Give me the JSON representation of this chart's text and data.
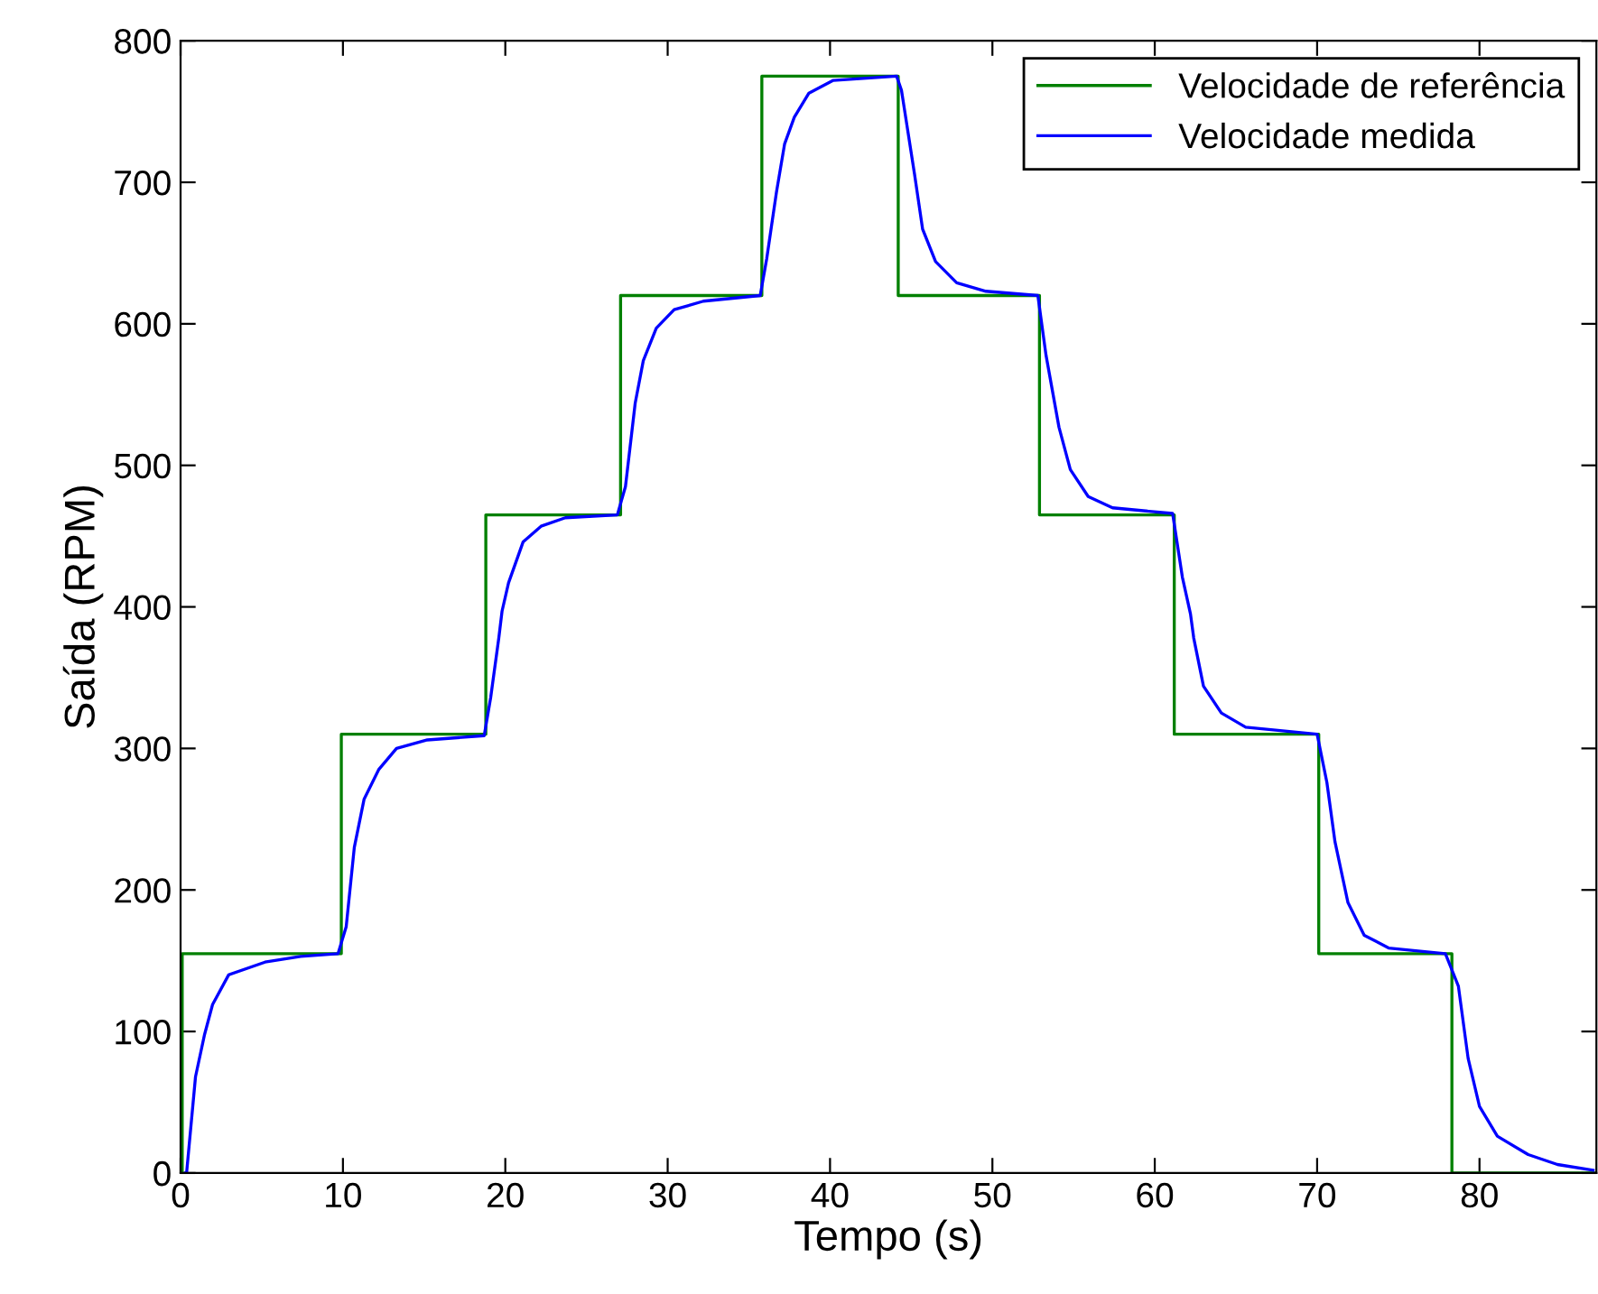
{
  "chart_data": {
    "type": "line",
    "xlabel": "Tempo (s)",
    "ylabel": "Saída (RPM)",
    "xlim": [
      0,
      87.2
    ],
    "ylim": [
      0,
      800
    ],
    "xticks": [
      0,
      10,
      20,
      30,
      40,
      50,
      60,
      70,
      80
    ],
    "yticks": [
      0,
      100,
      200,
      300,
      400,
      500,
      600,
      700,
      800
    ],
    "grid": false,
    "legend": "top right",
    "series": [
      {
        "name": "Velocidade de referência",
        "color": "#008000",
        "type": "step",
        "x": [
          0,
          0.1,
          9.9,
          18.8,
          27.1,
          35.8,
          44.2,
          52.9,
          61.2,
          70.1,
          78.3,
          87.2
        ],
        "values": [
          0,
          155,
          310,
          465,
          620,
          775,
          620,
          465,
          310,
          155,
          0,
          0
        ]
      },
      {
        "name": "Velocidade medida",
        "color": "#0000ff",
        "x": [
          0.3,
          0.37,
          0.92,
          1.48,
          1.97,
          2.96,
          5.2,
          7.4,
          9.7,
          10.2,
          10.7,
          11.3,
          12.2,
          13.3,
          15.2,
          18.7,
          19.1,
          19.6,
          19.8,
          20.2,
          21.1,
          22.2,
          23.7,
          26.9,
          27.4,
          28.0,
          28.5,
          29.3,
          30.4,
          32.2,
          35.7,
          36.1,
          36.7,
          37.2,
          37.8,
          38.7,
          40.2,
          44.1,
          44.4,
          45.2,
          45.7,
          46.5,
          47.8,
          49.6,
          52.8,
          53.3,
          54.1,
          54.8,
          55.9,
          57.4,
          61.1,
          61.7,
          62.2,
          62.4,
          63.0,
          64.1,
          65.6,
          70.0,
          70.6,
          71.1,
          71.9,
          72.9,
          74.4,
          77.9,
          78.7,
          79.3,
          80.0,
          81.1,
          83.0,
          84.8,
          87.0
        ],
        "values": [
          0,
          0,
          68,
          98,
          119,
          140,
          149,
          153,
          155,
          174,
          230,
          264,
          285,
          300,
          306,
          309,
          336,
          378,
          397,
          417,
          446,
          457,
          463,
          465,
          485,
          544,
          574,
          597,
          610,
          616,
          620,
          646,
          693,
          727,
          746,
          763,
          772,
          775,
          765,
          706,
          667,
          644,
          629,
          623,
          620,
          578,
          527,
          497,
          478,
          470,
          466,
          421,
          395,
          378,
          344,
          325,
          315,
          310,
          276,
          234,
          191,
          168,
          159,
          155,
          132,
          81,
          47,
          26,
          13,
          6,
          2
        ]
      }
    ]
  }
}
